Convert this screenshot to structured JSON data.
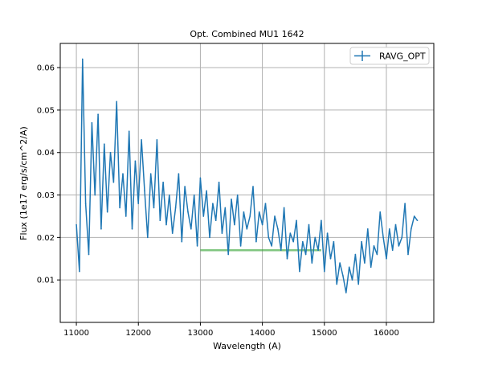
{
  "chart_data": {
    "type": "line",
    "title": "Opt. Combined MU1 1642",
    "xlabel": "Wavelength (A)",
    "ylabel": "Flux (1e17 erg/s/cm^2/A)",
    "xlim": [
      10740,
      16765
    ],
    "ylim": [
      0.0,
      0.0657
    ],
    "xticks": [
      11000,
      12000,
      13000,
      14000,
      15000,
      16000
    ],
    "yticks": [
      0.01,
      0.02,
      0.03,
      0.04,
      0.05,
      0.06
    ],
    "ytick_labels": [
      "0.01",
      "0.02",
      "0.03",
      "0.04",
      "0.05",
      "0.06"
    ],
    "grid": true,
    "legend": {
      "placement": "top-right",
      "entries": [
        "RAVG_OPT"
      ]
    },
    "series": [
      {
        "name": "RAVG_OPT",
        "color": "#1f77b4",
        "x_start": 11000,
        "x_step": 50,
        "values": [
          0.023,
          0.012,
          0.062,
          0.028,
          0.016,
          0.047,
          0.03,
          0.049,
          0.022,
          0.042,
          0.026,
          0.04,
          0.033,
          0.052,
          0.027,
          0.035,
          0.025,
          0.045,
          0.022,
          0.038,
          0.028,
          0.043,
          0.031,
          0.02,
          0.035,
          0.027,
          0.043,
          0.024,
          0.033,
          0.023,
          0.03,
          0.021,
          0.027,
          0.035,
          0.019,
          0.032,
          0.026,
          0.022,
          0.03,
          0.018,
          0.034,
          0.025,
          0.031,
          0.02,
          0.028,
          0.024,
          0.033,
          0.021,
          0.027,
          0.016,
          0.029,
          0.023,
          0.03,
          0.018,
          0.026,
          0.022,
          0.025,
          0.032,
          0.019,
          0.026,
          0.023,
          0.028,
          0.02,
          0.018,
          0.025,
          0.022,
          0.017,
          0.027,
          0.015,
          0.021,
          0.019,
          0.024,
          0.012,
          0.019,
          0.016,
          0.023,
          0.014,
          0.02,
          0.017,
          0.024,
          0.012,
          0.021,
          0.015,
          0.019,
          0.009,
          0.014,
          0.011,
          0.007,
          0.013,
          0.01,
          0.016,
          0.009,
          0.019,
          0.014,
          0.022,
          0.013,
          0.018,
          0.016,
          0.026,
          0.02,
          0.015,
          0.022,
          0.017,
          0.023,
          0.018,
          0.02,
          0.028,
          0.016,
          0.022,
          0.025,
          0.024
        ]
      }
    ],
    "hline": {
      "y": 0.017,
      "x_range": [
        13000,
        14950
      ],
      "color": "#2ca02c"
    }
  }
}
